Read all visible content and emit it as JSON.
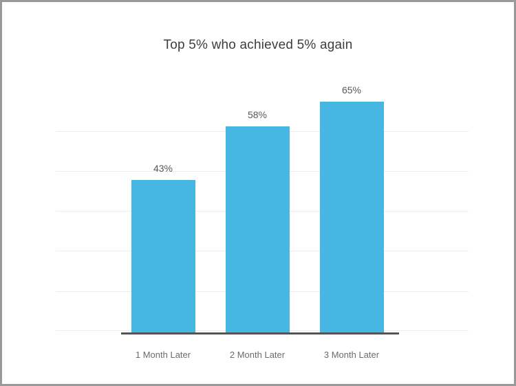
{
  "window": {
    "background_color": "#ffffff",
    "border_color": "#999999"
  },
  "chart_data": {
    "type": "bar",
    "title": "Top 5% who achieved 5% again",
    "categories": [
      "1 Month Later",
      "2 Month Later",
      "3 Month Later"
    ],
    "values": [
      43,
      58,
      65
    ],
    "value_labels": [
      "43%",
      "58%",
      "65%"
    ],
    "unit": "%",
    "ylim": [
      0,
      100
    ],
    "grid": true,
    "legend": false,
    "bar_color": "#46b6e3",
    "gridline_color": "#ececec",
    "axis_line_color": "#545454",
    "title_color": "#3d3d3d",
    "value_label_color": "#575757",
    "category_label_color": "#6b6b6b"
  }
}
